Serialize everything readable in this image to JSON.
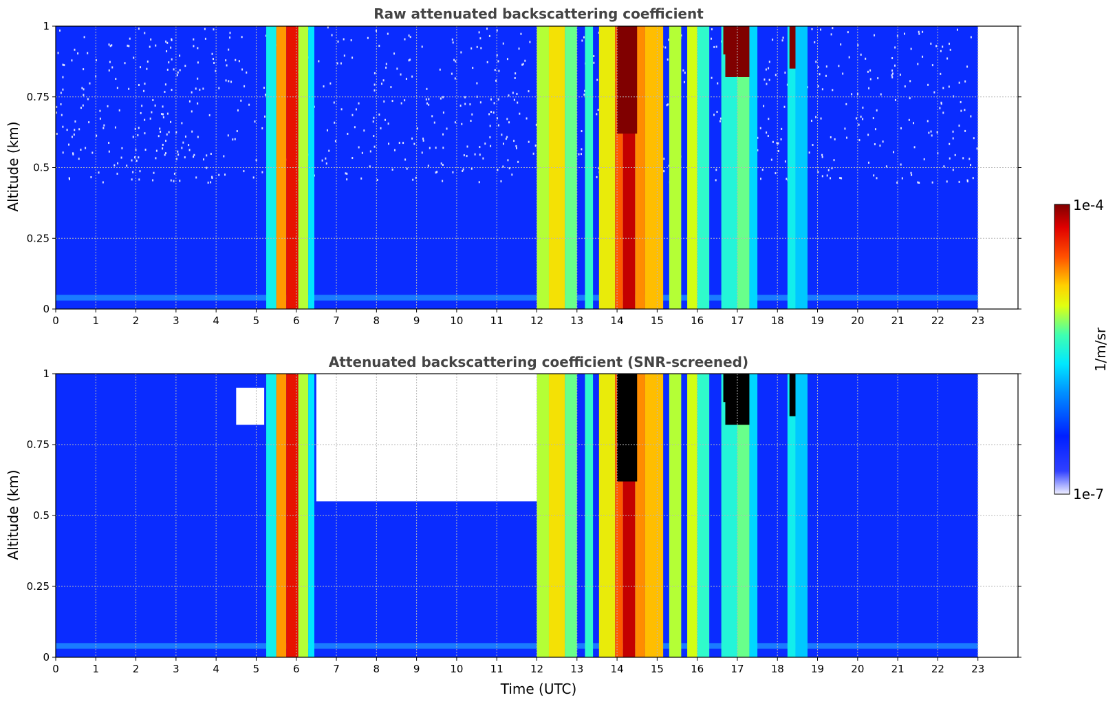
{
  "chart_data": [
    {
      "type": "heatmap",
      "title": "Raw attenuated backscattering coefficient",
      "xlabel": "",
      "ylabel": "Altitude (km)",
      "xlim": [
        0,
        24
      ],
      "ylim": [
        0,
        1
      ],
      "xticks": [
        "0",
        "1",
        "2",
        "3",
        "4",
        "5",
        "6",
        "7",
        "8",
        "9",
        "10",
        "11",
        "12",
        "13",
        "14",
        "15",
        "16",
        "17",
        "18",
        "19",
        "20",
        "21",
        "22",
        "23"
      ],
      "yticks": [
        "0",
        "0.25",
        "0.5",
        "0.75",
        "1"
      ],
      "data_end_hour": 23,
      "grid": true,
      "screened": false,
      "features": [
        {
          "t_start": 5.25,
          "t_end": 5.5,
          "level": 0.45,
          "top": 1.0
        },
        {
          "t_start": 5.5,
          "t_end": 5.75,
          "level": 0.75,
          "top": 1.0
        },
        {
          "t_start": 5.75,
          "t_end": 6.05,
          "level": 0.88,
          "top": 1.0
        },
        {
          "t_start": 6.05,
          "t_end": 6.3,
          "level": 0.6,
          "top": 1.0
        },
        {
          "t_start": 6.3,
          "t_end": 6.45,
          "level": 0.42,
          "top": 1.0
        },
        {
          "t_start": 12.0,
          "t_end": 12.3,
          "level": 0.6,
          "top": 1.0
        },
        {
          "t_start": 12.3,
          "t_end": 12.7,
          "level": 0.68,
          "top": 1.0
        },
        {
          "t_start": 12.7,
          "t_end": 13.0,
          "level": 0.55,
          "top": 1.0
        },
        {
          "t_start": 13.2,
          "t_end": 13.4,
          "level": 0.5,
          "top": 1.0
        },
        {
          "t_start": 13.55,
          "t_end": 13.95,
          "level": 0.66,
          "top": 1.0
        },
        {
          "t_start": 13.95,
          "t_end": 14.15,
          "level": 0.8,
          "top": 1.0
        },
        {
          "t_start": 14.15,
          "t_end": 14.45,
          "level": 0.93,
          "top": 1.0
        },
        {
          "t_start": 14.45,
          "t_end": 14.7,
          "level": 0.76,
          "top": 1.0
        },
        {
          "t_start": 14.7,
          "t_end": 15.15,
          "level": 0.72,
          "top": 1.0
        },
        {
          "t_start": 15.3,
          "t_end": 15.6,
          "level": 0.6,
          "top": 1.0
        },
        {
          "t_start": 15.75,
          "t_end": 16.0,
          "level": 0.62,
          "top": 1.0
        },
        {
          "t_start": 16.0,
          "t_end": 16.3,
          "level": 0.5,
          "top": 1.0
        },
        {
          "t_start": 16.6,
          "t_end": 17.0,
          "level": 0.48,
          "top": 1.0
        },
        {
          "t_start": 17.0,
          "t_end": 17.3,
          "level": 0.55,
          "top": 1.0
        },
        {
          "t_start": 17.3,
          "t_end": 17.5,
          "level": 0.4,
          "top": 1.0
        },
        {
          "t_start": 18.25,
          "t_end": 18.45,
          "level": 0.45,
          "top": 1.0
        },
        {
          "t_start": 18.45,
          "t_end": 18.75,
          "level": 0.38,
          "top": 1.0
        },
        {
          "t_start": 14.0,
          "t_end": 14.5,
          "level": 1.0,
          "bottom": 0.62,
          "top": 1.0
        },
        {
          "t_start": 16.7,
          "t_end": 17.3,
          "level": 1.0,
          "bottom": 0.82,
          "top": 1.0
        },
        {
          "t_start": 18.3,
          "t_end": 18.45,
          "level": 1.0,
          "bottom": 0.85,
          "top": 1.0
        },
        {
          "t_start": 16.65,
          "t_end": 16.85,
          "level": 1.0,
          "bottom": 0.9,
          "top": 1.0
        }
      ]
    },
    {
      "type": "heatmap",
      "title": "Attenuated backscattering coefficient (SNR-screened)",
      "xlabel": "Time (UTC)",
      "ylabel": "Altitude (km)",
      "xlim": [
        0,
        24
      ],
      "ylim": [
        0,
        1
      ],
      "xticks": [
        "0",
        "1",
        "2",
        "3",
        "4",
        "5",
        "6",
        "7",
        "8",
        "9",
        "10",
        "11",
        "12",
        "13",
        "14",
        "15",
        "16",
        "17",
        "18",
        "19",
        "20",
        "21",
        "22",
        "23"
      ],
      "yticks": [
        "0",
        "0.25",
        "0.5",
        "0.75",
        "1"
      ],
      "data_end_hour": 23,
      "grid": true,
      "screened": true,
      "screened_regions": [
        {
          "t_start": 6.5,
          "t_end": 12.0,
          "bottom": 0.55,
          "top": 1.0
        },
        {
          "t_start": 4.5,
          "t_end": 5.2,
          "bottom": 0.82,
          "top": 0.95
        }
      ],
      "features": [
        {
          "t_start": 5.25,
          "t_end": 5.5,
          "level": 0.45,
          "top": 1.0
        },
        {
          "t_start": 5.5,
          "t_end": 5.75,
          "level": 0.75,
          "top": 1.0
        },
        {
          "t_start": 5.75,
          "t_end": 6.05,
          "level": 0.88,
          "top": 1.0
        },
        {
          "t_start": 6.05,
          "t_end": 6.3,
          "level": 0.6,
          "top": 1.0
        },
        {
          "t_start": 6.3,
          "t_end": 6.45,
          "level": 0.42,
          "top": 1.0
        },
        {
          "t_start": 12.0,
          "t_end": 12.3,
          "level": 0.6,
          "top": 1.0
        },
        {
          "t_start": 12.3,
          "t_end": 12.7,
          "level": 0.68,
          "top": 1.0
        },
        {
          "t_start": 12.7,
          "t_end": 13.0,
          "level": 0.55,
          "top": 1.0
        },
        {
          "t_start": 13.2,
          "t_end": 13.4,
          "level": 0.5,
          "top": 1.0
        },
        {
          "t_start": 13.55,
          "t_end": 13.95,
          "level": 0.66,
          "top": 1.0
        },
        {
          "t_start": 13.95,
          "t_end": 14.15,
          "level": 0.8,
          "top": 1.0
        },
        {
          "t_start": 14.15,
          "t_end": 14.45,
          "level": 0.93,
          "top": 1.0
        },
        {
          "t_start": 14.45,
          "t_end": 14.7,
          "level": 0.76,
          "top": 1.0
        },
        {
          "t_start": 14.7,
          "t_end": 15.15,
          "level": 0.72,
          "top": 1.0
        },
        {
          "t_start": 15.3,
          "t_end": 15.6,
          "level": 0.6,
          "top": 1.0
        },
        {
          "t_start": 15.75,
          "t_end": 16.0,
          "level": 0.62,
          "top": 1.0
        },
        {
          "t_start": 16.0,
          "t_end": 16.3,
          "level": 0.5,
          "top": 1.0
        },
        {
          "t_start": 16.6,
          "t_end": 17.0,
          "level": 0.48,
          "top": 1.0
        },
        {
          "t_start": 17.0,
          "t_end": 17.3,
          "level": 0.55,
          "top": 1.0
        },
        {
          "t_start": 17.3,
          "t_end": 17.5,
          "level": 0.4,
          "top": 1.0
        },
        {
          "t_start": 18.25,
          "t_end": 18.45,
          "level": 0.45,
          "top": 1.0
        },
        {
          "t_start": 18.45,
          "t_end": 18.75,
          "level": 0.38,
          "top": 1.0
        },
        {
          "t_start": 14.0,
          "t_end": 14.5,
          "level": 1.2,
          "bottom": 0.62,
          "top": 1.0
        },
        {
          "t_start": 16.7,
          "t_end": 17.3,
          "level": 1.2,
          "bottom": 0.82,
          "top": 1.0
        },
        {
          "t_start": 18.3,
          "t_end": 18.45,
          "level": 1.2,
          "bottom": 0.85,
          "top": 1.0
        },
        {
          "t_start": 16.65,
          "t_end": 16.85,
          "level": 1.2,
          "bottom": 0.9,
          "top": 1.0
        }
      ]
    }
  ],
  "colorbar": {
    "label": "1/m/sr",
    "max_label": "1e-4",
    "min_label": "1e-7",
    "colormap": "jet",
    "colors": [
      "#ffffff",
      "#0000ff",
      "#00ffff",
      "#ffff00",
      "#ff0000",
      "#800000"
    ]
  }
}
